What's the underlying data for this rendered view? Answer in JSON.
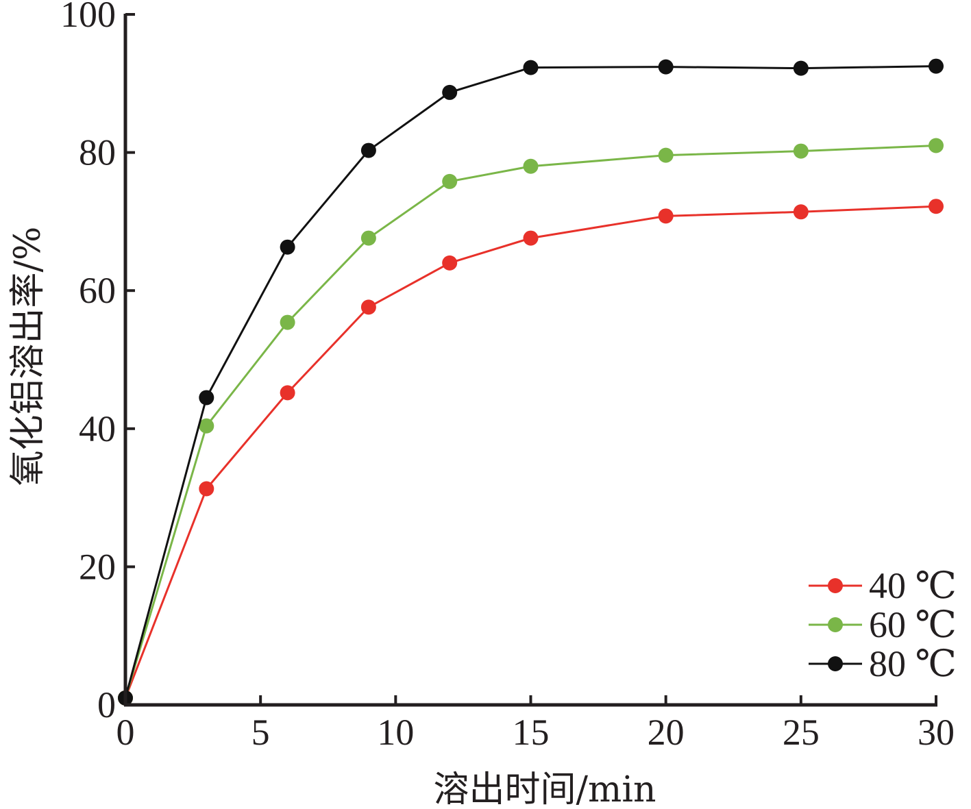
{
  "chart_data": {
    "type": "line",
    "title": "",
    "xlabel": "溶出时间/min",
    "ylabel": "氧化铝溶出率/%",
    "xlim": [
      0,
      30
    ],
    "ylim": [
      0,
      100
    ],
    "xticks": [
      0,
      5,
      10,
      15,
      20,
      25,
      30
    ],
    "yticks": [
      0,
      20,
      40,
      60,
      80,
      100
    ],
    "grid": false,
    "legend_position": "bottom-right",
    "x": [
      0,
      3,
      6,
      9,
      12,
      15,
      20,
      25,
      30
    ],
    "series": [
      {
        "name": "40 ℃",
        "color": "#e8312a",
        "values": [
          1,
          31.3,
          45.2,
          57.6,
          64.0,
          67.6,
          70.8,
          71.4,
          72.2
        ]
      },
      {
        "name": "60 ℃",
        "color": "#7ab648",
        "values": [
          1,
          40.4,
          55.4,
          67.6,
          75.8,
          78.0,
          79.6,
          80.2,
          81.0
        ]
      },
      {
        "name": "80 ℃",
        "color": "#111111",
        "values": [
          1,
          44.5,
          66.3,
          80.3,
          88.7,
          92.3,
          92.4,
          92.2,
          92.5
        ]
      }
    ]
  }
}
